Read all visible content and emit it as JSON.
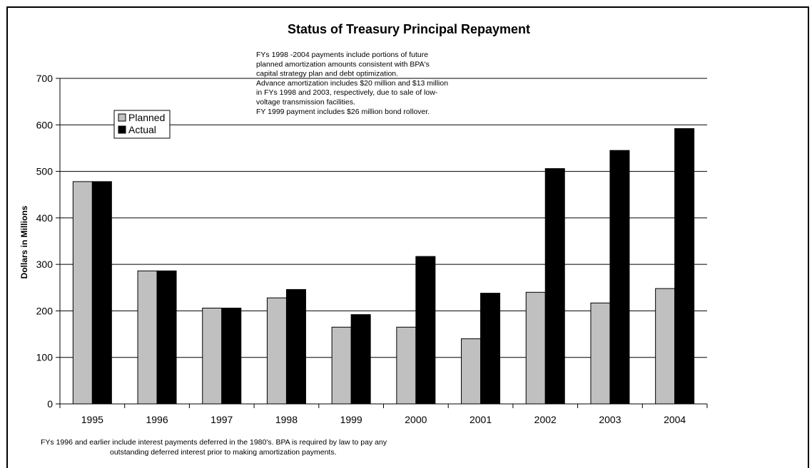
{
  "chart_data": {
    "type": "bar",
    "title": "Status of Treasury Principal Repayment",
    "xlabel": "",
    "ylabel": "Dollars in Millions",
    "ylim": [
      0,
      700
    ],
    "yticks": [
      "0",
      "100",
      "200",
      "300",
      "400",
      "500",
      "600",
      "700"
    ],
    "categories": [
      "1995",
      "1996",
      "1997",
      "1998",
      "1999",
      "2000",
      "2001",
      "2002",
      "2003",
      "2004"
    ],
    "series": [
      {
        "name": "Planned",
        "color": "#c0c0c0",
        "values": [
          478,
          286,
          206,
          228,
          165,
          165,
          140,
          240,
          217,
          248
        ]
      },
      {
        "name": "Actual",
        "color": "#000000",
        "values": [
          478,
          286,
          206,
          246,
          192,
          317,
          238,
          506,
          545,
          592
        ]
      }
    ],
    "grid": true,
    "legend_position": "upper-left",
    "annotation_lines": [
      "FYs 1998 -2004 payments include portions of future",
      "planned amortization amounts consistent with BPA's",
      "capital strategy plan and debt optimization.",
      "Advance amortization includes $20 million and $13 million",
      "in FYs 1998 and 2003, respectively, due to sale of low-",
      "voltage transmission facilities.",
      "FY 1999 payment includes $26 million bond rollover."
    ],
    "footnote_lines": [
      "FYs 1996 and earlier include interest payments deferred in the 1980's.  BPA is required by law to pay any",
      "outstanding deferred interest prior to making amortization payments."
    ]
  }
}
